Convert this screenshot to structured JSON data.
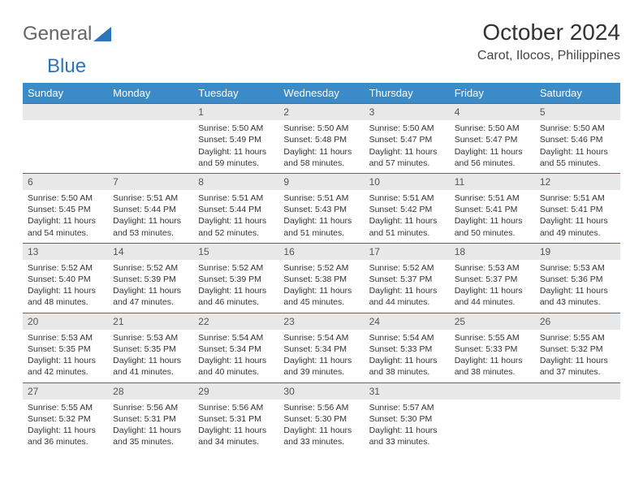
{
  "logo": {
    "text1": "General",
    "text2": "Blue"
  },
  "title": "October 2024",
  "location": "Carot, Ilocos, Philippines",
  "colors": {
    "header_bg": "#3b8bc9",
    "week_border": "#3b6fa0",
    "date_bg": "#e8e8e8",
    "logo_accent": "#2a76b8"
  },
  "day_names": [
    "Sunday",
    "Monday",
    "Tuesday",
    "Wednesday",
    "Thursday",
    "Friday",
    "Saturday"
  ],
  "weeks": [
    [
      null,
      null,
      {
        "date": "1",
        "sunrise": "5:50 AM",
        "sunset": "5:49 PM",
        "daylight": "11 hours and 59 minutes."
      },
      {
        "date": "2",
        "sunrise": "5:50 AM",
        "sunset": "5:48 PM",
        "daylight": "11 hours and 58 minutes."
      },
      {
        "date": "3",
        "sunrise": "5:50 AM",
        "sunset": "5:47 PM",
        "daylight": "11 hours and 57 minutes."
      },
      {
        "date": "4",
        "sunrise": "5:50 AM",
        "sunset": "5:47 PM",
        "daylight": "11 hours and 56 minutes."
      },
      {
        "date": "5",
        "sunrise": "5:50 AM",
        "sunset": "5:46 PM",
        "daylight": "11 hours and 55 minutes."
      }
    ],
    [
      {
        "date": "6",
        "sunrise": "5:50 AM",
        "sunset": "5:45 PM",
        "daylight": "11 hours and 54 minutes."
      },
      {
        "date": "7",
        "sunrise": "5:51 AM",
        "sunset": "5:44 PM",
        "daylight": "11 hours and 53 minutes."
      },
      {
        "date": "8",
        "sunrise": "5:51 AM",
        "sunset": "5:44 PM",
        "daylight": "11 hours and 52 minutes."
      },
      {
        "date": "9",
        "sunrise": "5:51 AM",
        "sunset": "5:43 PM",
        "daylight": "11 hours and 51 minutes."
      },
      {
        "date": "10",
        "sunrise": "5:51 AM",
        "sunset": "5:42 PM",
        "daylight": "11 hours and 51 minutes."
      },
      {
        "date": "11",
        "sunrise": "5:51 AM",
        "sunset": "5:41 PM",
        "daylight": "11 hours and 50 minutes."
      },
      {
        "date": "12",
        "sunrise": "5:51 AM",
        "sunset": "5:41 PM",
        "daylight": "11 hours and 49 minutes."
      }
    ],
    [
      {
        "date": "13",
        "sunrise": "5:52 AM",
        "sunset": "5:40 PM",
        "daylight": "11 hours and 48 minutes."
      },
      {
        "date": "14",
        "sunrise": "5:52 AM",
        "sunset": "5:39 PM",
        "daylight": "11 hours and 47 minutes."
      },
      {
        "date": "15",
        "sunrise": "5:52 AM",
        "sunset": "5:39 PM",
        "daylight": "11 hours and 46 minutes."
      },
      {
        "date": "16",
        "sunrise": "5:52 AM",
        "sunset": "5:38 PM",
        "daylight": "11 hours and 45 minutes."
      },
      {
        "date": "17",
        "sunrise": "5:52 AM",
        "sunset": "5:37 PM",
        "daylight": "11 hours and 44 minutes."
      },
      {
        "date": "18",
        "sunrise": "5:53 AM",
        "sunset": "5:37 PM",
        "daylight": "11 hours and 44 minutes."
      },
      {
        "date": "19",
        "sunrise": "5:53 AM",
        "sunset": "5:36 PM",
        "daylight": "11 hours and 43 minutes."
      }
    ],
    [
      {
        "date": "20",
        "sunrise": "5:53 AM",
        "sunset": "5:35 PM",
        "daylight": "11 hours and 42 minutes."
      },
      {
        "date": "21",
        "sunrise": "5:53 AM",
        "sunset": "5:35 PM",
        "daylight": "11 hours and 41 minutes."
      },
      {
        "date": "22",
        "sunrise": "5:54 AM",
        "sunset": "5:34 PM",
        "daylight": "11 hours and 40 minutes."
      },
      {
        "date": "23",
        "sunrise": "5:54 AM",
        "sunset": "5:34 PM",
        "daylight": "11 hours and 39 minutes."
      },
      {
        "date": "24",
        "sunrise": "5:54 AM",
        "sunset": "5:33 PM",
        "daylight": "11 hours and 38 minutes."
      },
      {
        "date": "25",
        "sunrise": "5:55 AM",
        "sunset": "5:33 PM",
        "daylight": "11 hours and 38 minutes."
      },
      {
        "date": "26",
        "sunrise": "5:55 AM",
        "sunset": "5:32 PM",
        "daylight": "11 hours and 37 minutes."
      }
    ],
    [
      {
        "date": "27",
        "sunrise": "5:55 AM",
        "sunset": "5:32 PM",
        "daylight": "11 hours and 36 minutes."
      },
      {
        "date": "28",
        "sunrise": "5:56 AM",
        "sunset": "5:31 PM",
        "daylight": "11 hours and 35 minutes."
      },
      {
        "date": "29",
        "sunrise": "5:56 AM",
        "sunset": "5:31 PM",
        "daylight": "11 hours and 34 minutes."
      },
      {
        "date": "30",
        "sunrise": "5:56 AM",
        "sunset": "5:30 PM",
        "daylight": "11 hours and 33 minutes."
      },
      {
        "date": "31",
        "sunrise": "5:57 AM",
        "sunset": "5:30 PM",
        "daylight": "11 hours and 33 minutes."
      },
      null,
      null
    ]
  ],
  "labels": {
    "sunrise": "Sunrise:",
    "sunset": "Sunset:",
    "daylight": "Daylight:"
  }
}
